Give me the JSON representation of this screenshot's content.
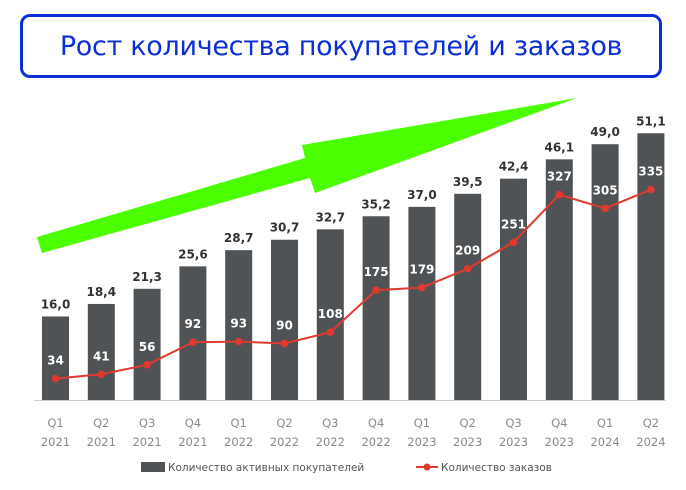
{
  "title": "Рост количества покупателей и заказов",
  "colors": {
    "title": "#0a2fd6",
    "bar": "#4f5355",
    "line": "#e03a2f",
    "arrow": "#4cff00",
    "axis_text": "#8a8a8a",
    "value_text": "#333333"
  },
  "legend": {
    "bar_label": "Количество активных покупателей",
    "line_label": "Количество заказов"
  },
  "chart_data": {
    "type": "bar",
    "title": "Рост количества покупателей и заказов",
    "xlabel": "",
    "ylabel": "",
    "categories": [
      "Q1 2021",
      "Q2 2021",
      "Q3 2021",
      "Q4 2021",
      "Q1 2022",
      "Q2 2022",
      "Q3 2022",
      "Q4 2022",
      "Q1 2023",
      "Q2 2023",
      "Q3 2023",
      "Q4 2023",
      "Q1 2024",
      "Q2 2024"
    ],
    "quarters": [
      "Q1",
      "Q2",
      "Q3",
      "Q4",
      "Q1",
      "Q2",
      "Q3",
      "Q4",
      "Q1",
      "Q2",
      "Q3",
      "Q4",
      "Q1",
      "Q2"
    ],
    "years": [
      "2021",
      "2021",
      "2021",
      "2021",
      "2022",
      "2022",
      "2022",
      "2022",
      "2023",
      "2023",
      "2023",
      "2023",
      "2024",
      "2024"
    ],
    "series": [
      {
        "name": "Количество активных покупателей",
        "type": "bar",
        "values": [
          16.0,
          18.4,
          21.3,
          25.6,
          28.7,
          30.7,
          32.7,
          35.2,
          37.0,
          39.5,
          42.4,
          46.1,
          49.0,
          51.1
        ],
        "labels": [
          "16,0",
          "18,4",
          "21,3",
          "25,6",
          "28,7",
          "30,7",
          "32,7",
          "35,2",
          "37,0",
          "39,5",
          "42,4",
          "46,1",
          "49,0",
          "51,1"
        ]
      },
      {
        "name": "Количество заказов",
        "type": "line",
        "values": [
          34,
          41,
          56,
          92,
          93,
          90,
          108,
          175,
          179,
          209,
          251,
          327,
          305,
          335
        ],
        "labels": [
          "34",
          "41",
          "56",
          "92",
          "93",
          "90",
          "108",
          "175",
          "179",
          "209",
          "251",
          "327",
          "305",
          "335"
        ]
      }
    ],
    "grid": false,
    "legend_position": "bottom",
    "annotations": [
      "green upward arrow indicating growth"
    ]
  }
}
